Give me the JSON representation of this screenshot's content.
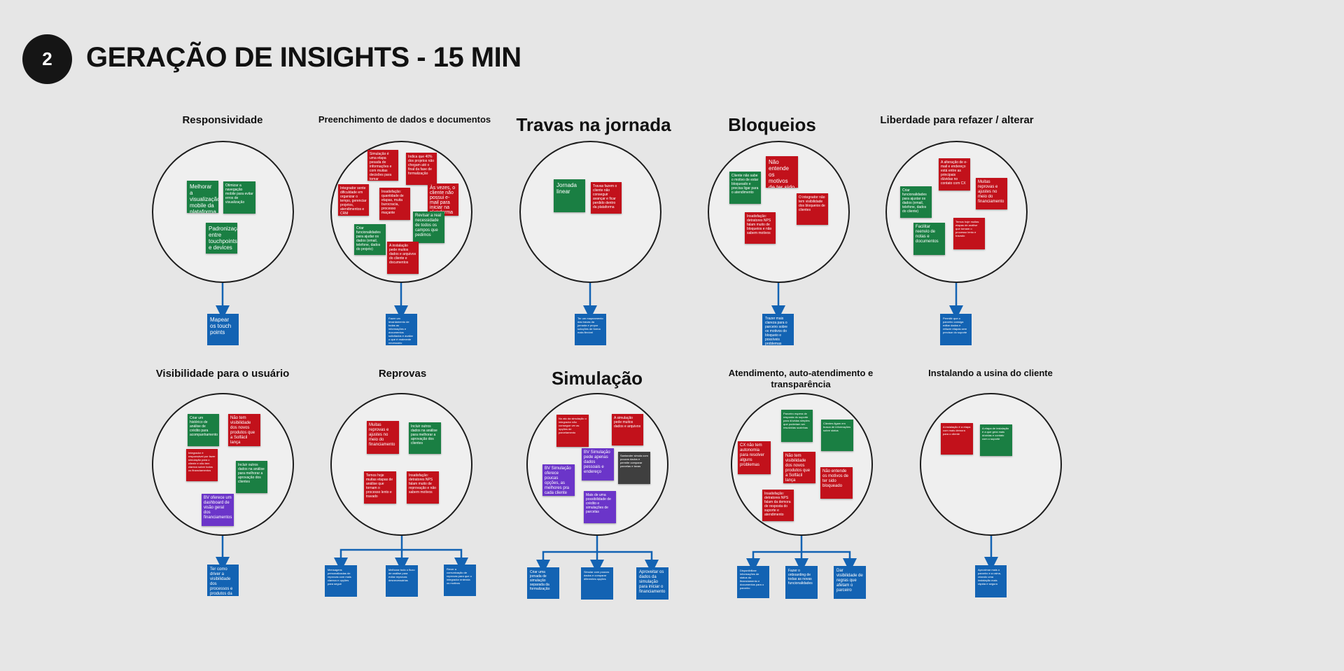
{
  "header": {
    "step_number": "2",
    "title": "GERAÇÃO DE INSIGHTS - 15 MIN"
  },
  "clusters": {
    "responsividade": {
      "title": "Responsividade",
      "notes": [
        "Melhorar a visualização mobile da plataforma",
        "Otimizar a navegação mobile para evitar erros de visualização",
        "Padronização entre touchpoints e devices"
      ],
      "outcomes": [
        "Mapear os touch points"
      ]
    },
    "preenchimento": {
      "title": "Preenchimento de dados e documentos",
      "notes": [
        "Simulação é uma etapa pesada de informações e com muitas decisões para tomar",
        "Indica que 40% dos projetos não chegam até o final da fase de formalização",
        "Integrador sente dificuldade em organizar o tempo, gerenciar projetos, atendimentos e CRM",
        "Insatisfação: quantidade de etapas, muita burocracia, processo maçante",
        "Às vezes, o cliente não possui e-mail para iniciar na plataforma",
        "Criar funcionalidades para ajudar os dados (email, telefone, dados do projeto)",
        "Revisar a real necessidade de todos os campos que pedimos",
        "A instalação pede muitos dados e arquivos do cliente e documentos"
      ],
      "outcomes": [
        "Fazer um levantamento de todas as informações e documentos solicitados e avaliar o que é realmente necessário"
      ]
    },
    "travas": {
      "title": "Travas na jornada",
      "notes": [
        "Jornada linear",
        "Travas fazem o cliente não conseguir avançar e ficar perdido dentro da plataforma"
      ],
      "outcomes": [
        "Ter um mapeamento das travas da jornada e propor soluções de forma mais flexível"
      ]
    },
    "bloqueios": {
      "title": "Bloqueios",
      "notes": [
        "Cliente não sabe o motivo de estar bloqueado e precisa ligar para o atendimento",
        "Não entende os motivos de ter sido bloqueado",
        "O integrador não tem visibilidade dos bloqueios de clientes",
        "Insatisfação: detratores NPS falam muito de bloqueios e não sabem motivos"
      ],
      "outcomes": [
        "Trazer mais clareza para o parceiro sobre os motivos do bloqueio e possíveis problemas"
      ]
    },
    "liberdade": {
      "title": "Liberdade para refazer / alterar",
      "notes": [
        "A alteração de e-mail e endereço está entre as principais dúvidas no contato com CX",
        "Criar funcionalidades para ajustar os dados (email, telefone, dados do cliente)",
        "Muitas reprovas e ajustes no meio do financiamento",
        "Facilitar reenvio de notas e documentos",
        "Temos hoje muitas etapas de análise que tornam o processo lento e travado"
      ],
      "outcomes": [
        "Permitir que o parceiro consiga editar dados e refazer etapas sem precisar do suporte"
      ]
    },
    "visibilidade": {
      "title": "Visibilidade para o usuário",
      "notes": [
        "Criar um histórico de análise de crédito para acompanhamento",
        "Não tem visibilidade dos novos produtos que a Solfácil lança",
        "Integrador é responsável por fazer simulação para o cliente e não tem clareza sobre todos os financiamentos",
        "Incluir outros dados na análise para melhorar a aprovação dos clientes",
        "BV oferece um dashboard de visão geral dos financiamentos"
      ],
      "outcomes": [
        "Ter como driver a visibilidade dos processos e produtos da Solfácil"
      ]
    },
    "reprovas": {
      "title": "Reprovas",
      "notes": [
        "Muitas reprovas e ajustes no meio do financiamento",
        "Incluir outros dados na análise para melhorar a aprovação dos clientes",
        "Temos hoje muitas etapas de análise que tornam o processo lento e travado",
        "Insatisfação: detratores NPS falam muito de reprovação e não sabem motivos"
      ],
      "outcomes": [
        "Mensagens personalizadas de reprovas com mais clareza e opções para seguir",
        "Melhorar todo o fluxo de análise para evitar reprovas desnecessárias",
        "Rever a comunicação de reprovas para que o integrador entenda os motivos"
      ]
    },
    "simulacao": {
      "title": "Simulação",
      "notes": [
        "No ato da simulação o integrador não consegue ver as opções de parcelamento",
        "A simulação pede muitos dados e arquivos",
        "BV Simulação pede apenas dados pessoais e endereço",
        "Santander simula com poucos dados e permite comparar parcelas e taxas",
        "BV Simulação oferece poucas opções, as melhores pra cada cliente",
        "Mais de uma possibilidade de crédito e simulações de parcelas"
      ],
      "outcomes": [
        "Criar uma jornada de simulação separada da formalização",
        "Simular com poucos dados e comparar diferentes opções",
        "Aproveitar os dados da simulação para iniciar o financiamento"
      ]
    },
    "atendimento": {
      "title": "Atendimento, auto-atendimento e transparência",
      "notes": [
        "Parceiro espera de resposta do suporte para dúvidas simples que poderiam ser resolvidas sozinhas",
        "Clientes ligam em busca de informações sobre status",
        "CX não tem autonomia para resolver alguns problemas",
        "Não tem visibilidade dos novos produtos que a Solfácil lança",
        "Não entende os motivos de ter sido bloqueado",
        "Insatisfação: detratores NPS falam da demora de resposta do suporte e atendimento"
      ],
      "outcomes": [
        "Disponibilizar informações de status do financiamento e documentos para o parceiro",
        "Fazer o onboarding de todas as novas funcionalidades",
        "Dar visibilidade de regras que afetam o parceiro"
      ]
    },
    "instalando": {
      "title": "Instalando a usina do cliente",
      "notes": [
        "A instalação é a etapa com mais demora para o cliente",
        "A etapa de instalação é a que gera mais dúvidas e contato com o suporte"
      ],
      "outcomes": [
        "Aproximar mais o parceiro e a usina, criando uma instalação mais rápida e segura"
      ]
    }
  }
}
